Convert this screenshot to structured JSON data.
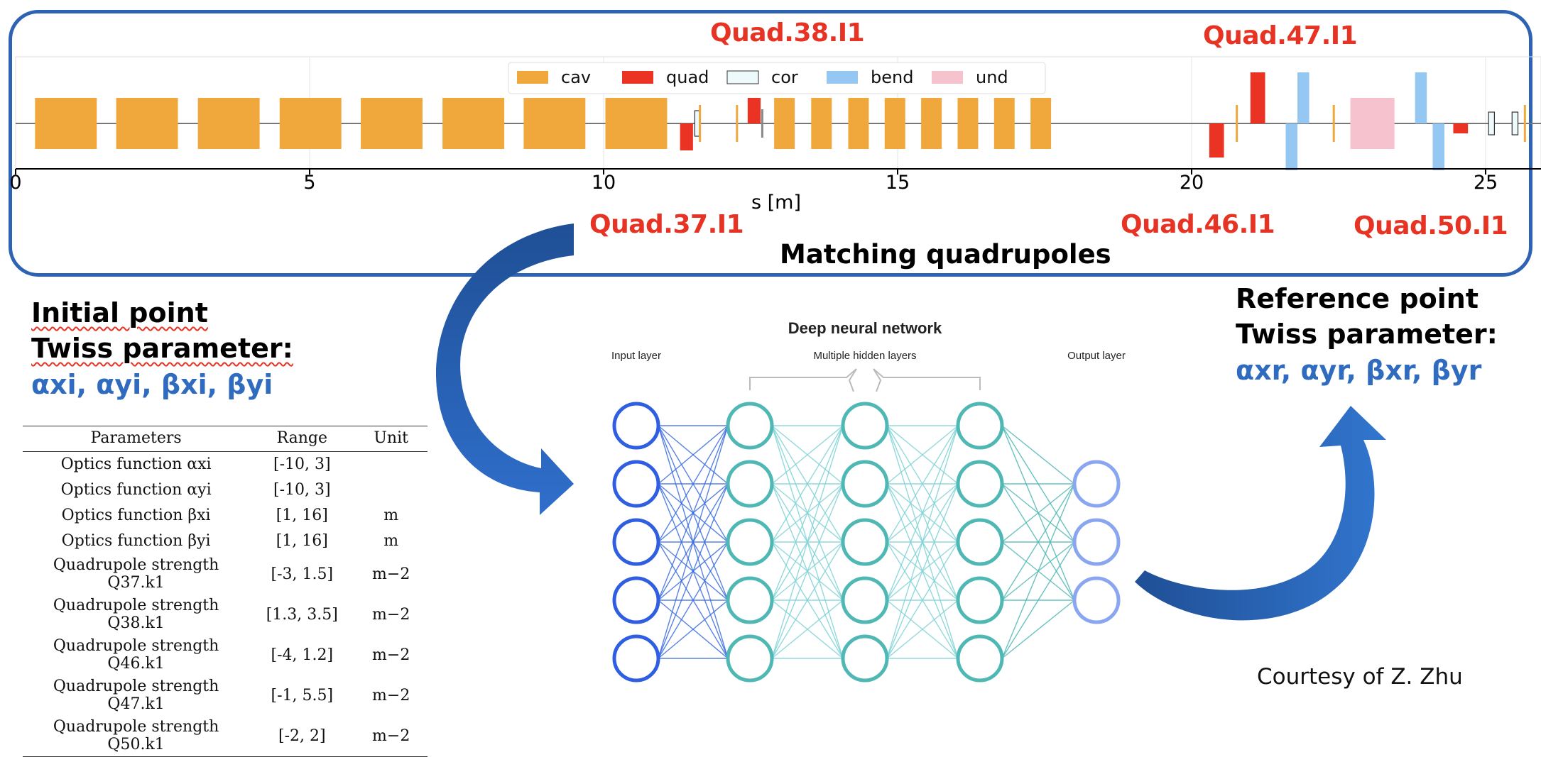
{
  "lattice": {
    "xlabel": "s [m]",
    "ticks": [
      "0",
      "5",
      "10",
      "15",
      "20",
      "25"
    ],
    "legend": [
      {
        "name": "cav",
        "color": "#f0a83c"
      },
      {
        "name": "quad",
        "color": "#ea3323"
      },
      {
        "name": "cor",
        "color": "#eef9fb"
      },
      {
        "name": "bend",
        "color": "#94c8f2"
      },
      {
        "name": "und",
        "color": "#f5c2cd"
      }
    ],
    "quad_labels": {
      "q38": "Quad.38.I1",
      "q47": "Quad.47.I1",
      "q37": "Quad.37.I1",
      "q46": "Quad.46.I1",
      "q50": "Quad.50.I1"
    },
    "caption": "Matching quadrupoles"
  },
  "initial": {
    "line1": "Initial point",
    "line2": "Twiss parameter:",
    "params": "αxi, αyi, βxi, βyi"
  },
  "reference": {
    "line1": "Reference point",
    "line2": "Twiss parameter:",
    "params": "αxr, αyr, βxr, βyr"
  },
  "table": {
    "headers": [
      "Parameters",
      "Range",
      "Unit"
    ],
    "rows": [
      {
        "name": "Optics function αxi",
        "range": "[-10, 3]",
        "unit": ""
      },
      {
        "name": "Optics function αyi",
        "range": "[-10, 3]",
        "unit": ""
      },
      {
        "name": "Optics function βxi",
        "range": "[1, 16]",
        "unit": "m"
      },
      {
        "name": "Optics function βyi",
        "range": "[1, 16]",
        "unit": "m"
      },
      {
        "name": "Quadrupole strength Q37.k1",
        "range": "[-3, 1.5]",
        "unit": "m−2"
      },
      {
        "name": "Quadrupole strength Q38.k1",
        "range": "[1.3, 3.5]",
        "unit": "m−2"
      },
      {
        "name": "Quadrupole strength Q46.k1",
        "range": "[-4, 1.2]",
        "unit": "m−2"
      },
      {
        "name": "Quadrupole strength Q47.k1",
        "range": "[-1, 5.5]",
        "unit": "m−2"
      },
      {
        "name": "Quadrupole strength Q50.k1",
        "range": "[-2, 2]",
        "unit": "m−2"
      }
    ]
  },
  "network": {
    "title": "Deep neural network",
    "input_label": "Input layer",
    "hidden_label": "Multiple hidden layers",
    "output_label": "Output layer",
    "layers": [
      5,
      5,
      5,
      5,
      3
    ],
    "colors": {
      "input": "#2f5fe0",
      "hidden": "#4fb8b5",
      "output": "#8aa6f0"
    }
  },
  "courtesy": "Courtesy of Z. Zhu"
}
